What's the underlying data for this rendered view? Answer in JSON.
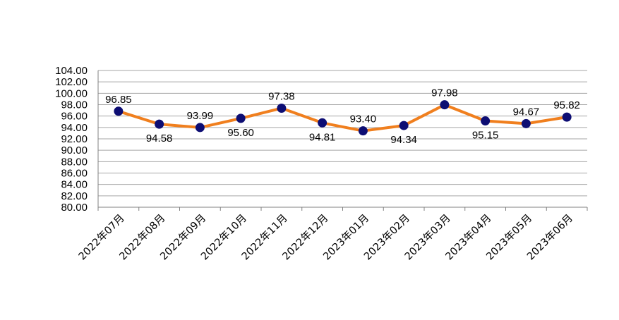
{
  "chart_data": {
    "type": "line",
    "categories": [
      "2022年07月",
      "2022年08月",
      "2022年09月",
      "2022年10月",
      "2022年11月",
      "2022年12月",
      "2023年01月",
      "2023年02月",
      "2023年03月",
      "2023年04月",
      "2023年05月",
      "2023年06月"
    ],
    "values": [
      96.85,
      94.58,
      93.99,
      95.6,
      97.38,
      94.81,
      93.4,
      94.34,
      97.98,
      95.15,
      94.67,
      95.82
    ],
    "data_labels": [
      "96.85",
      "94.58",
      "93.99",
      "95.60",
      "97.38",
      "94.81",
      "93.40",
      "94.34",
      "97.98",
      "95.15",
      "94.67",
      "95.82"
    ],
    "data_label_positions": [
      "above",
      "below",
      "above",
      "below",
      "above",
      "below",
      "above",
      "below",
      "above",
      "below",
      "above",
      "above"
    ],
    "y_tick_labels": [
      "80.00",
      "82.00",
      "84.00",
      "86.00",
      "88.00",
      "90.00",
      "92.00",
      "94.00",
      "96.00",
      "98.00",
      "100.00",
      "102.00",
      "104.00"
    ],
    "ylim": [
      80,
      104
    ],
    "ystep": 2,
    "title": "",
    "xlabel": "",
    "ylabel": "",
    "grid": true,
    "legend": "none",
    "colors": {
      "line": "#f07f1e",
      "marker": "#0d0d73",
      "grid": "#a6a6a6",
      "axis": "#808080"
    }
  }
}
